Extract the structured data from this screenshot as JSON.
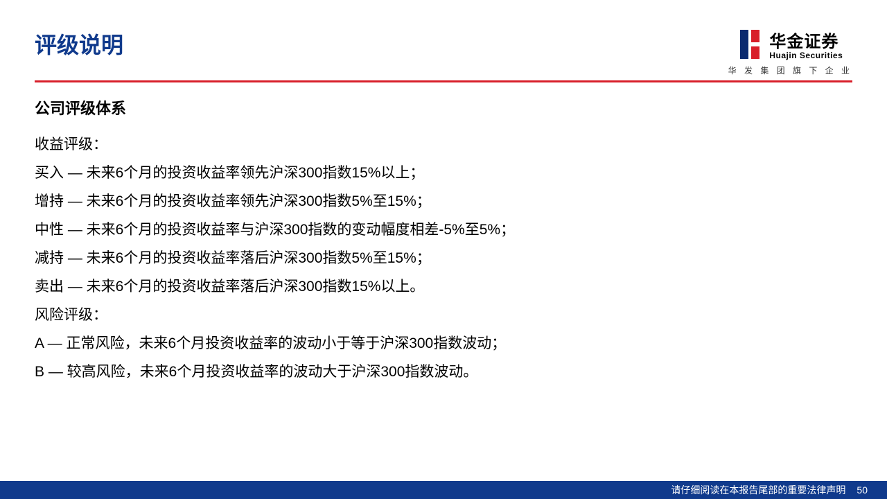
{
  "colors": {
    "title_blue": "#103a8c",
    "divider_red": "#d81f2a",
    "footer_bg": "#103a8c",
    "footer_text": "#ffffff",
    "body_text": "#000000",
    "logo_blue": "#0a2a6f",
    "logo_red": "#d81f2a"
  },
  "header": {
    "title": "评级说明",
    "logo": {
      "cn": "华金证券",
      "en": "Huajin Securities",
      "sub": "华 发 集 团 旗 下 企 业"
    }
  },
  "body": {
    "section_heading": "公司评级体系",
    "return_rating_label": "收益评级：",
    "return_ratings": [
      "买入 — 未来6个月的投资收益率领先沪深300指数15%以上；",
      "增持 — 未来6个月的投资收益率领先沪深300指数5%至15%；",
      "中性 — 未来6个月的投资收益率与沪深300指数的变动幅度相差-5%至5%；",
      "减持 — 未来6个月的投资收益率落后沪深300指数5%至15%；",
      "卖出 — 未来6个月的投资收益率落后沪深300指数15%以上。"
    ],
    "risk_rating_label": "风险评级：",
    "risk_ratings": [
      "A — 正常风险，未来6个月投资收益率的波动小于等于沪深300指数波动；",
      "B — 较高风险，未来6个月投资收益率的波动大于沪深300指数波动。"
    ]
  },
  "footer": {
    "disclaimer": "请仔细阅读在本报告尾部的重要法律声明",
    "page_number": "50"
  }
}
